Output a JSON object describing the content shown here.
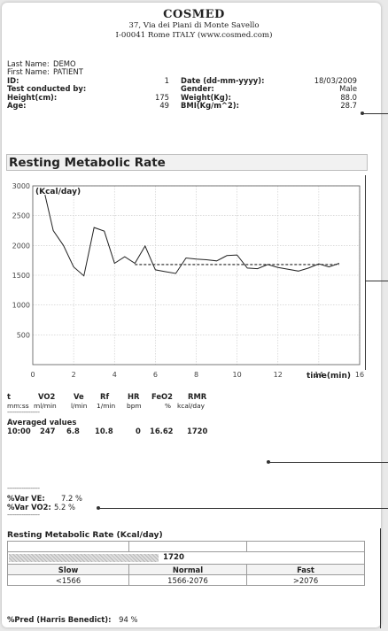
{
  "header": {
    "company": "COSMED",
    "address1": "37, Via dei Piani di Monte Savello",
    "address2": "I-00041 Rome ITALY (www.cosmed.com)"
  },
  "patient": {
    "last_name_label": "Last Name:",
    "last_name": "DEMO",
    "first_name_label": "First Name:",
    "first_name": "PATIENT",
    "id_label": "ID:",
    "id": "1",
    "date_label": "Date (dd-mm-yyyy):",
    "date": "18/03/2009",
    "test_by_label": "Test conducted by:",
    "gender_label": "Gender:",
    "gender": "Male",
    "height_label": "Height(cm):",
    "height": "175",
    "weight_label": "Weight(Kg):",
    "weight": "88.0",
    "age_label": "Age:",
    "age": "49",
    "bmi_label": "BMI(Kg/m^2):",
    "bmi": "28.7"
  },
  "section_title": "Resting Metabolic Rate",
  "chart_data": {
    "type": "line",
    "ylabel": "(Kcal/day)",
    "xlabel": "time(min)",
    "xlim": [
      0,
      16
    ],
    "ylim": [
      0,
      3000
    ],
    "x_ticks": [
      0,
      2,
      4,
      6,
      8,
      10,
      12,
      14,
      16
    ],
    "y_ticks": [
      500,
      1000,
      1500,
      2000,
      2500,
      3000
    ],
    "grid": true,
    "series": [
      {
        "style": "solid",
        "x": [
          0.6,
          1.0,
          1.5,
          2.0,
          2.5,
          3.0,
          3.5,
          4.0,
          4.5,
          5.0,
          5.5,
          6.0,
          6.5,
          7.0,
          7.5,
          8.0,
          8.5,
          9.0,
          9.5,
          10.0,
          10.5,
          11.0,
          11.5,
          12.0,
          12.5,
          13.0,
          13.5,
          14.0,
          14.5,
          15.0
        ],
        "y": [
          2850,
          2250,
          2000,
          1640,
          1490,
          2300,
          2240,
          1700,
          1810,
          1700,
          1990,
          1590,
          1560,
          1530,
          1790,
          1770,
          1760,
          1740,
          1830,
          1840,
          1620,
          1610,
          1680,
          1630,
          1600,
          1570,
          1620,
          1690,
          1640,
          1700
        ]
      },
      {
        "style": "dashed",
        "x": [
          5.0,
          15.0
        ],
        "y": [
          1680,
          1680
        ]
      }
    ]
  },
  "table": {
    "headers": [
      "t",
      "VO2",
      "Ve",
      "Rf",
      "HR",
      "FeO2",
      "RMR"
    ],
    "units": [
      "mm:ss",
      "ml/min",
      "l/min",
      "1/min",
      "bpm",
      "%",
      "kcal/day"
    ],
    "dashes": "------------------",
    "averaged_label": "Averaged values",
    "values": [
      "10:00",
      "247",
      "6.8",
      "10.8",
      "0",
      "16.62",
      "1720"
    ]
  },
  "variance": {
    "dashes": "------------------",
    "ve_label": "%Var VE:",
    "ve_value": "7.2 %",
    "vo2_label": "%Var VO2:",
    "vo2_value": "5.2 %",
    "dashes2": "------------------"
  },
  "rmr_box": {
    "title": "Resting Metabolic Rate (Kcal/day)",
    "value": "1720",
    "bar_fraction": 0.42,
    "categories": [
      "Slow",
      "Normal",
      "Fast"
    ],
    "ranges": [
      "<1566",
      "1566-2076",
      ">2076"
    ]
  },
  "pred": {
    "label": "%Pred (Harris Benedict):",
    "value": "94 %"
  }
}
